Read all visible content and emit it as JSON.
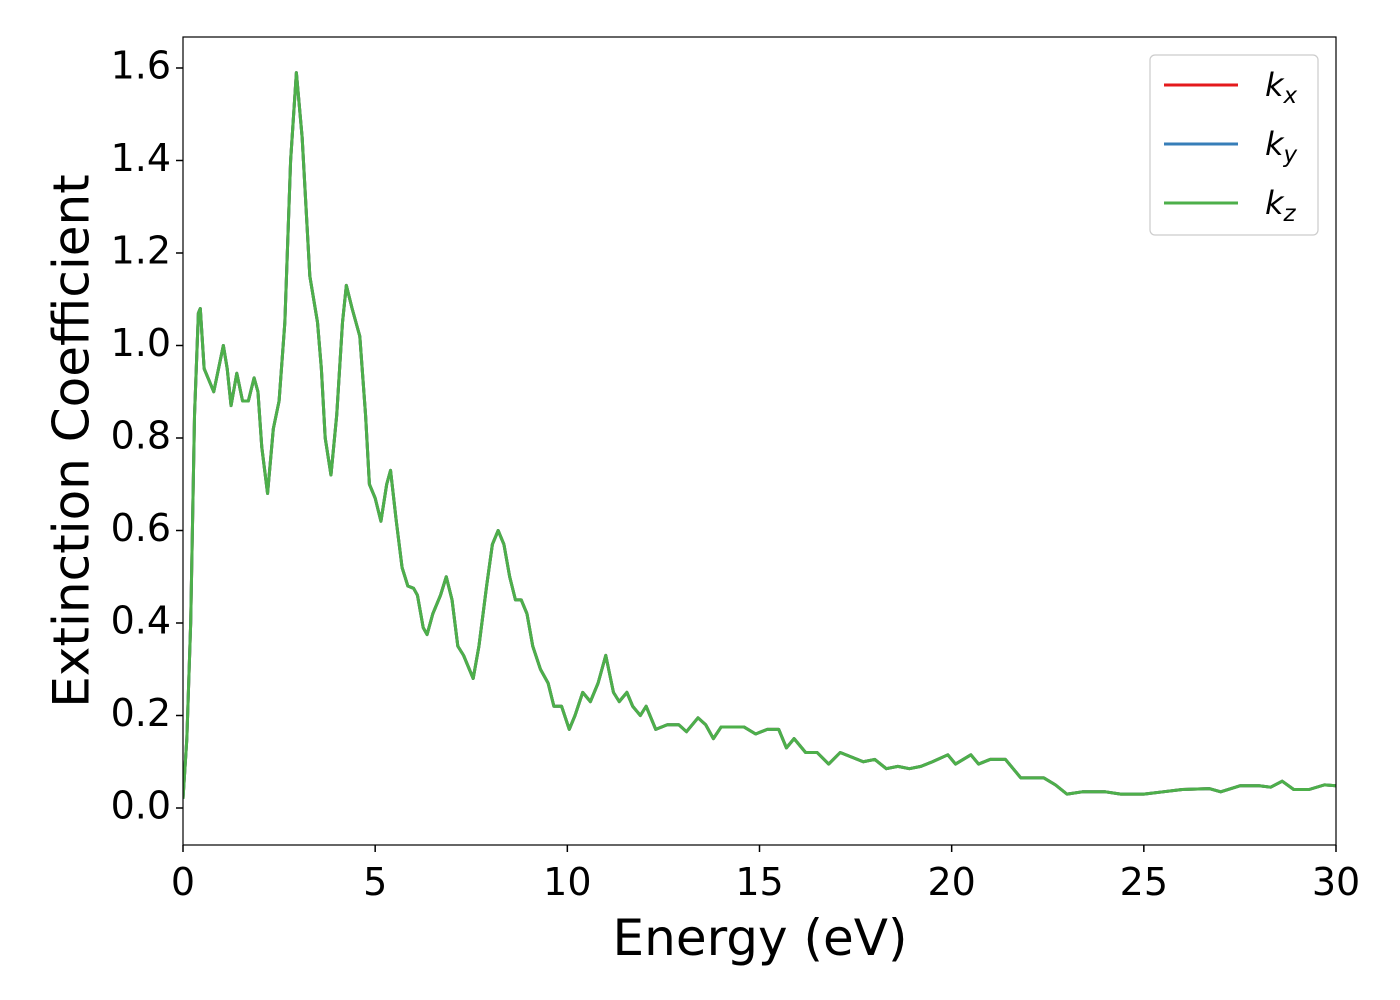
{
  "chart_data": {
    "type": "line",
    "xlabel": "Energy (eV)",
    "ylabel": "Extinction Coefficient",
    "x": [
      0,
      0.1,
      0.2,
      0.3,
      0.4,
      0.45,
      0.55,
      0.65,
      0.8,
      1.0,
      1.05,
      1.15,
      1.25,
      1.4,
      1.55,
      1.7,
      1.85,
      1.95,
      2.05,
      2.2,
      2.35,
      2.5,
      2.65,
      2.8,
      2.95,
      3.1,
      3.3,
      3.5,
      3.6,
      3.7,
      3.85,
      4.0,
      4.15,
      4.25,
      4.4,
      4.6,
      4.75,
      4.85,
      5.0,
      5.15,
      5.3,
      5.4,
      5.55,
      5.7,
      5.85,
      6.0,
      6.1,
      6.25,
      6.35,
      6.5,
      6.7,
      6.85,
      7.0,
      7.15,
      7.3,
      7.45,
      7.55,
      7.7,
      7.9,
      8.05,
      8.2,
      8.35,
      8.5,
      8.65,
      8.8,
      8.95,
      9.1,
      9.3,
      9.5,
      9.65,
      9.85,
      10.05,
      10.2,
      10.4,
      10.6,
      10.8,
      11.0,
      11.2,
      11.35,
      11.55,
      11.7,
      11.9,
      12.05,
      12.3,
      12.6,
      12.9,
      13.1,
      13.4,
      13.6,
      13.8,
      14.0,
      14.3,
      14.6,
      14.9,
      15.2,
      15.5,
      15.7,
      15.9,
      16.2,
      16.5,
      16.8,
      17.1,
      17.4,
      17.7,
      18.0,
      18.3,
      18.6,
      18.9,
      19.2,
      19.5,
      19.9,
      20.1,
      20.5,
      20.7,
      21.0,
      21.4,
      21.8,
      22.4,
      22.7,
      23.0,
      23.4,
      24.0,
      24.4,
      25.0,
      25.5,
      26.0,
      26.7,
      27.0,
      27.5,
      28.0,
      28.3,
      28.6,
      28.9,
      29.3,
      29.7,
      30.0
    ],
    "series": [
      {
        "name": "kx",
        "color": "#e41a1c",
        "values": [
          0.02,
          0.15,
          0.4,
          0.85,
          1.07,
          1.08,
          0.95,
          0.93,
          0.9,
          0.98,
          1.0,
          0.95,
          0.87,
          0.94,
          0.88,
          0.88,
          0.93,
          0.9,
          0.78,
          0.68,
          0.82,
          0.88,
          1.05,
          1.4,
          1.59,
          1.45,
          1.15,
          1.05,
          0.95,
          0.8,
          0.72,
          0.85,
          1.05,
          1.13,
          1.08,
          1.02,
          0.85,
          0.7,
          0.67,
          0.62,
          0.7,
          0.73,
          0.62,
          0.52,
          0.48,
          0.475,
          0.46,
          0.39,
          0.375,
          0.42,
          0.46,
          0.5,
          0.45,
          0.35,
          0.33,
          0.3,
          0.28,
          0.35,
          0.48,
          0.57,
          0.6,
          0.57,
          0.5,
          0.45,
          0.45,
          0.42,
          0.35,
          0.3,
          0.27,
          0.22,
          0.22,
          0.17,
          0.2,
          0.25,
          0.23,
          0.27,
          0.33,
          0.25,
          0.23,
          0.25,
          0.22,
          0.2,
          0.22,
          0.17,
          0.18,
          0.18,
          0.165,
          0.195,
          0.18,
          0.15,
          0.175,
          0.175,
          0.175,
          0.16,
          0.17,
          0.17,
          0.13,
          0.15,
          0.12,
          0.12,
          0.095,
          0.12,
          0.11,
          0.1,
          0.105,
          0.085,
          0.09,
          0.085,
          0.09,
          0.1,
          0.115,
          0.095,
          0.115,
          0.095,
          0.105,
          0.105,
          0.065,
          0.065,
          0.05,
          0.03,
          0.035,
          0.035,
          0.03,
          0.03,
          0.035,
          0.04,
          0.042,
          0.035,
          0.048,
          0.048,
          0.045,
          0.058,
          0.04,
          0.04,
          0.05,
          0.048
        ]
      },
      {
        "name": "ky",
        "color": "#377eb8",
        "values": [
          0.02,
          0.15,
          0.4,
          0.85,
          1.07,
          1.08,
          0.95,
          0.93,
          0.9,
          0.98,
          1.0,
          0.95,
          0.87,
          0.94,
          0.88,
          0.88,
          0.93,
          0.9,
          0.78,
          0.68,
          0.82,
          0.88,
          1.05,
          1.4,
          1.59,
          1.45,
          1.15,
          1.05,
          0.95,
          0.8,
          0.72,
          0.85,
          1.05,
          1.13,
          1.08,
          1.02,
          0.85,
          0.7,
          0.67,
          0.62,
          0.7,
          0.73,
          0.62,
          0.52,
          0.48,
          0.475,
          0.46,
          0.39,
          0.375,
          0.42,
          0.46,
          0.5,
          0.45,
          0.35,
          0.33,
          0.3,
          0.28,
          0.35,
          0.48,
          0.57,
          0.6,
          0.57,
          0.5,
          0.45,
          0.45,
          0.42,
          0.35,
          0.3,
          0.27,
          0.22,
          0.22,
          0.17,
          0.2,
          0.25,
          0.23,
          0.27,
          0.33,
          0.25,
          0.23,
          0.25,
          0.22,
          0.2,
          0.22,
          0.17,
          0.18,
          0.18,
          0.165,
          0.195,
          0.18,
          0.15,
          0.175,
          0.175,
          0.175,
          0.16,
          0.17,
          0.17,
          0.13,
          0.15,
          0.12,
          0.12,
          0.095,
          0.12,
          0.11,
          0.1,
          0.105,
          0.085,
          0.09,
          0.085,
          0.09,
          0.1,
          0.115,
          0.095,
          0.115,
          0.095,
          0.105,
          0.105,
          0.065,
          0.065,
          0.05,
          0.03,
          0.035,
          0.035,
          0.03,
          0.03,
          0.035,
          0.04,
          0.042,
          0.035,
          0.048,
          0.048,
          0.045,
          0.058,
          0.04,
          0.04,
          0.05,
          0.048
        ]
      },
      {
        "name": "kz",
        "color": "#4daf4a",
        "values": [
          0.02,
          0.15,
          0.4,
          0.85,
          1.07,
          1.08,
          0.95,
          0.93,
          0.9,
          0.98,
          1.0,
          0.95,
          0.87,
          0.94,
          0.88,
          0.88,
          0.93,
          0.9,
          0.78,
          0.68,
          0.82,
          0.88,
          1.05,
          1.4,
          1.59,
          1.45,
          1.15,
          1.05,
          0.95,
          0.8,
          0.72,
          0.85,
          1.05,
          1.13,
          1.08,
          1.02,
          0.85,
          0.7,
          0.67,
          0.62,
          0.7,
          0.73,
          0.62,
          0.52,
          0.48,
          0.475,
          0.46,
          0.39,
          0.375,
          0.42,
          0.46,
          0.5,
          0.45,
          0.35,
          0.33,
          0.3,
          0.28,
          0.35,
          0.48,
          0.57,
          0.6,
          0.57,
          0.5,
          0.45,
          0.45,
          0.42,
          0.35,
          0.3,
          0.27,
          0.22,
          0.22,
          0.17,
          0.2,
          0.25,
          0.23,
          0.27,
          0.33,
          0.25,
          0.23,
          0.25,
          0.22,
          0.2,
          0.22,
          0.17,
          0.18,
          0.18,
          0.165,
          0.195,
          0.18,
          0.15,
          0.175,
          0.175,
          0.175,
          0.16,
          0.17,
          0.17,
          0.13,
          0.15,
          0.12,
          0.12,
          0.095,
          0.12,
          0.11,
          0.1,
          0.105,
          0.085,
          0.09,
          0.085,
          0.09,
          0.1,
          0.115,
          0.095,
          0.115,
          0.095,
          0.105,
          0.105,
          0.065,
          0.065,
          0.05,
          0.03,
          0.035,
          0.035,
          0.03,
          0.03,
          0.035,
          0.04,
          0.042,
          0.035,
          0.048,
          0.048,
          0.045,
          0.058,
          0.04,
          0.04,
          0.05,
          0.048
        ]
      }
    ],
    "xlim": [
      0,
      30
    ],
    "xticks": [
      0,
      5,
      10,
      15,
      20,
      25,
      30
    ],
    "ylim": [
      -0.08,
      1.667
    ],
    "yticks": [
      {
        "value": 0,
        "label": "0.0"
      },
      0.2,
      0.4,
      0.6,
      0.8,
      {
        "value": 1,
        "label": "1.0"
      },
      1.2,
      1.4,
      1.6
    ],
    "legend": "upper right",
    "grid": false
  }
}
